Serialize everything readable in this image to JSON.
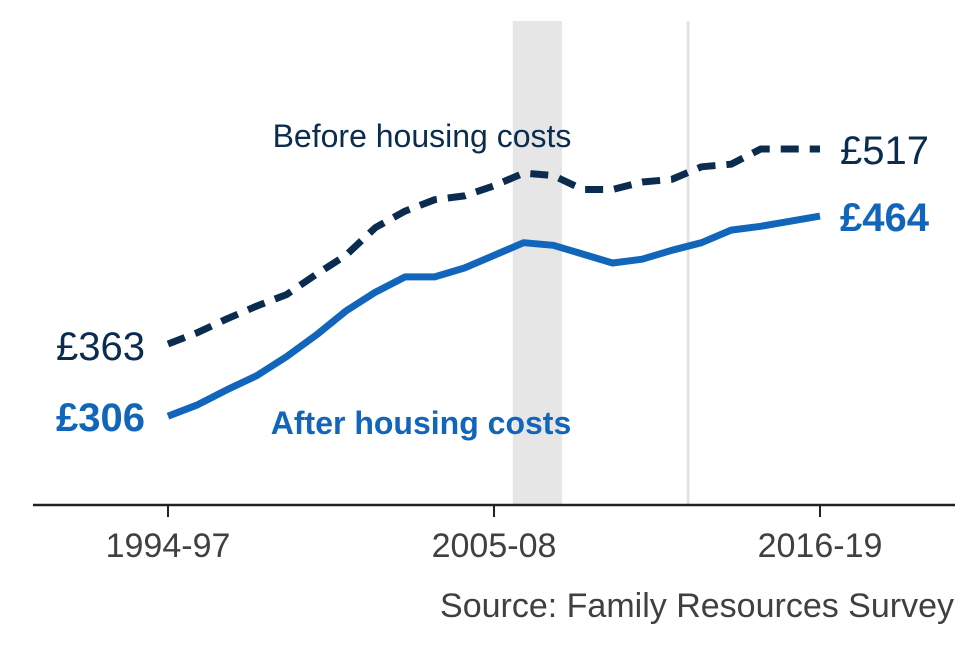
{
  "chart_data": {
    "type": "line",
    "x_ticks": [
      "1994-97",
      "2005-08",
      "2016-19"
    ],
    "x": [
      "1994-97",
      "1995-98",
      "1996-99",
      "1997-00",
      "1998-01",
      "1999-02",
      "2000-03",
      "2001-04",
      "2002-05",
      "2003-06",
      "2004-07",
      "2005-08",
      "2006-09",
      "2007-10",
      "2008-11",
      "2009-12",
      "2010-13",
      "2011-14",
      "2012-15",
      "2013-16",
      "2014-17",
      "2015-18",
      "2016-19"
    ],
    "series": [
      {
        "name": "Before housing costs",
        "style": "dashed",
        "color": "#0b2c4f",
        "values": [
          363,
          372,
          383,
          393,
          402,
          418,
          433,
          455,
          468,
          477,
          480,
          488,
          498,
          496,
          485,
          485,
          491,
          493,
          503,
          505,
          517,
          517,
          517
        ],
        "start_label": "£363",
        "end_label": "£517"
      },
      {
        "name": "After housing costs",
        "style": "solid",
        "color": "#1166bb",
        "values": [
          306,
          315,
          327,
          338,
          353,
          370,
          389,
          404,
          416,
          416,
          423,
          433,
          443,
          441,
          434,
          427,
          430,
          437,
          443,
          453,
          456,
          460,
          464
        ],
        "start_label": "£306",
        "end_label": "£464"
      }
    ],
    "shaded_regions": [
      {
        "from": "2006-09",
        "to": "2007-10",
        "color": "#e6e6e6"
      }
    ],
    "reference_lines": [
      {
        "at": "2011-14",
        "color": "#e3e3e3"
      }
    ],
    "ylim": [
      250,
      560
    ],
    "grid": false,
    "source": "Source: Family Resources Survey"
  }
}
